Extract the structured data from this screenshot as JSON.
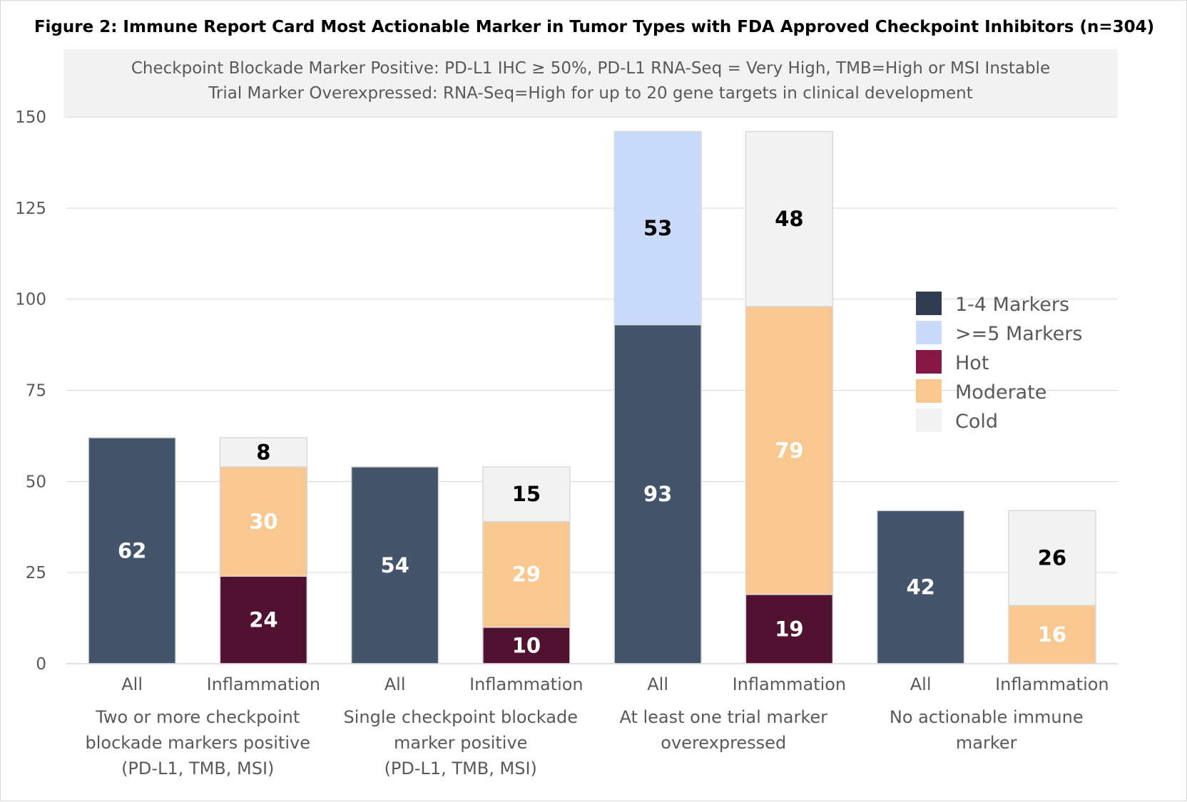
{
  "chart_data": {
    "type": "bar",
    "stacked": true,
    "title": "Figure 2: Immune Report Card Most Actionable Marker in Tumor Types with FDA Approved Checkpoint Inhibitors (n=304)",
    "notes": [
      "Checkpoint Blockade Marker Positive: PD-L1 IHC ≥ 50%, PD-L1 RNA-Seq = Very High, TMB=High or MSI Instable",
      "Trial Marker Overexpressed: RNA-Seq=High for up to 20 gene targets in clinical development"
    ],
    "xlabel": "",
    "ylabel": "",
    "ylim": [
      0,
      150
    ],
    "yticks": [
      0,
      25,
      50,
      75,
      100,
      125,
      150
    ],
    "grid": true,
    "legend_position": "right",
    "groups": [
      {
        "lines": [
          "Two or more checkpoint",
          "blockade markers positive",
          "(PD-L1, TMB, MSI)"
        ]
      },
      {
        "lines": [
          "Single checkpoint blockade",
          "marker positive",
          "(PD-L1, TMB, MSI)"
        ]
      },
      {
        "lines": [
          "At least one trial marker",
          "overexpressed"
        ]
      },
      {
        "lines": [
          "No actionable immune",
          "marker"
        ]
      }
    ],
    "categories": [
      "All",
      "Inflammation",
      "All",
      "Inflammation",
      "All",
      "Inflammation",
      "All",
      "Inflammation"
    ],
    "series": [
      {
        "name": "1-4 Markers",
        "color": "#44546a",
        "label_color": "#ffffff",
        "values": [
          62,
          0,
          54,
          0,
          93,
          0,
          42,
          0
        ]
      },
      {
        "name": ">=5 Markers",
        "color": "#c9dafa",
        "label_color": "#000000",
        "values": [
          0,
          0,
          0,
          0,
          53,
          0,
          0,
          0
        ]
      },
      {
        "name": "Hot",
        "color": "#511130",
        "label_color": "#ffffff",
        "values": [
          0,
          24,
          0,
          10,
          0,
          19,
          0,
          0
        ]
      },
      {
        "name": "Moderate",
        "color": "#f8c890",
        "label_color": "#ffffff",
        "values": [
          0,
          30,
          0,
          29,
          0,
          79,
          0,
          16
        ]
      },
      {
        "name": "Cold",
        "color": "#f2f2f2",
        "label_color": "#000000",
        "values": [
          0,
          8,
          0,
          15,
          0,
          48,
          0,
          26
        ]
      }
    ],
    "legend_colors": [
      "#303c4f",
      "#c9dafa",
      "#861845",
      "#f8c890",
      "#f2f2f2"
    ]
  }
}
